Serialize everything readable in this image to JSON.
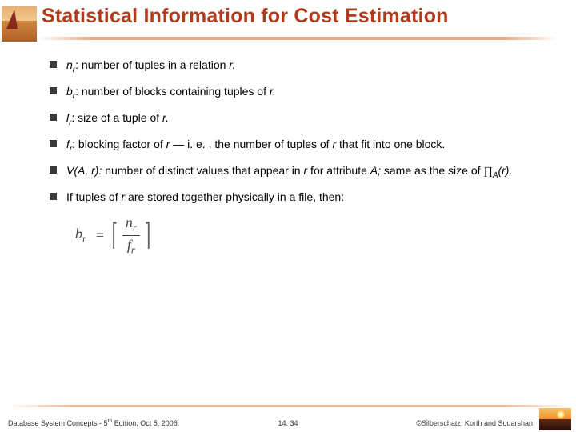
{
  "title": "Statistical Information for Cost Estimation",
  "title_color": "#b33a1a",
  "bullets": [
    {
      "sym": "n",
      "sub": "r",
      "rest": ":  number of tuples in a relation ",
      "tail": "r.",
      "tail_italic": true
    },
    {
      "sym": "b",
      "sub": "r",
      "rest": ": number of blocks containing tuples of ",
      "tail": "r.",
      "tail_italic": true
    },
    {
      "sym": "l",
      "sub": "r",
      "rest": ": size of a tuple of ",
      "tail": "r.",
      "tail_italic": true
    },
    {
      "sym": "f",
      "sub": "r",
      "rest": ": blocking factor of ",
      "mid": "r",
      "rest2": " — i. e. , the number of tuples of ",
      "mid2": "r",
      "rest3": " that fit into one block."
    },
    {
      "plain": "V(A, r):",
      "rest": " number of distinct values that appear in ",
      "mid": "r",
      "rest2": " for attribute ",
      "mid2": "A;",
      "rest3": " same as the size of ",
      "proj": true,
      "projsub": "A",
      "projarg": "(r).",
      "projend": ""
    },
    {
      "plain_up": "If tuples of ",
      "mid": "r",
      "rest": " are stored together physically in a file, then:"
    }
  ],
  "formula": {
    "lhs": "b",
    "lhs_sub": "r",
    "num": "n",
    "num_sub": "r",
    "den": "f",
    "den_sub": "r"
  },
  "footer": {
    "left_a": "Database System Concepts - 5",
    "left_sup": "th",
    "left_b": " Edition, Oct 5, 2006.",
    "center": "14. 34",
    "right": "©Silberschatz, Korth and Sudarshan"
  },
  "colors": {
    "bullet_square": "#3a3a3a",
    "text": "#000000",
    "underline": "#d2783c",
    "background": "#ffffff"
  }
}
